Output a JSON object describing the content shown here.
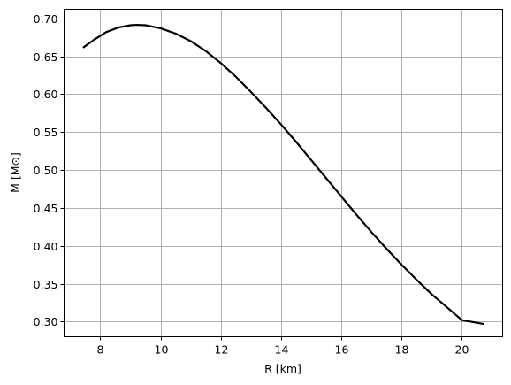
{
  "chart_data": {
    "type": "line",
    "title": "",
    "xlabel": "R [km]",
    "ylabel": "M [M⊙]",
    "xlim": [
      6.8,
      21.35
    ],
    "ylim": [
      0.28,
      0.712
    ],
    "xticks": [
      8,
      10,
      12,
      14,
      16,
      18,
      20
    ],
    "xtick_labels": [
      "8",
      "10",
      "12",
      "14",
      "16",
      "18",
      "20"
    ],
    "yticks": [
      0.3,
      0.35,
      0.4,
      0.45,
      0.5,
      0.55,
      0.6,
      0.65,
      0.7
    ],
    "ytick_labels": [
      "0.30",
      "0.35",
      "0.40",
      "0.45",
      "0.50",
      "0.55",
      "0.60",
      "0.65",
      "0.70"
    ],
    "grid": true,
    "legend": "none",
    "series": [
      {
        "color": "#000000",
        "x": [
          7.45,
          7.8,
          8.2,
          8.6,
          9.0,
          9.2,
          9.5,
          10.0,
          10.5,
          11.0,
          11.5,
          12.0,
          12.5,
          13.0,
          13.5,
          14.0,
          14.5,
          15.0,
          15.5,
          16.0,
          16.5,
          17.0,
          17.5,
          18.0,
          18.5,
          19.0,
          19.5,
          20.0,
          20.7
        ],
        "y": [
          0.662,
          0.672,
          0.682,
          0.688,
          0.691,
          0.6915,
          0.691,
          0.687,
          0.68,
          0.67,
          0.657,
          0.641,
          0.623,
          0.603,
          0.582,
          0.56,
          0.537,
          0.513,
          0.489,
          0.465,
          0.441,
          0.418,
          0.396,
          0.375,
          0.355,
          0.336,
          0.319,
          0.302,
          0.297
        ]
      }
    ]
  }
}
